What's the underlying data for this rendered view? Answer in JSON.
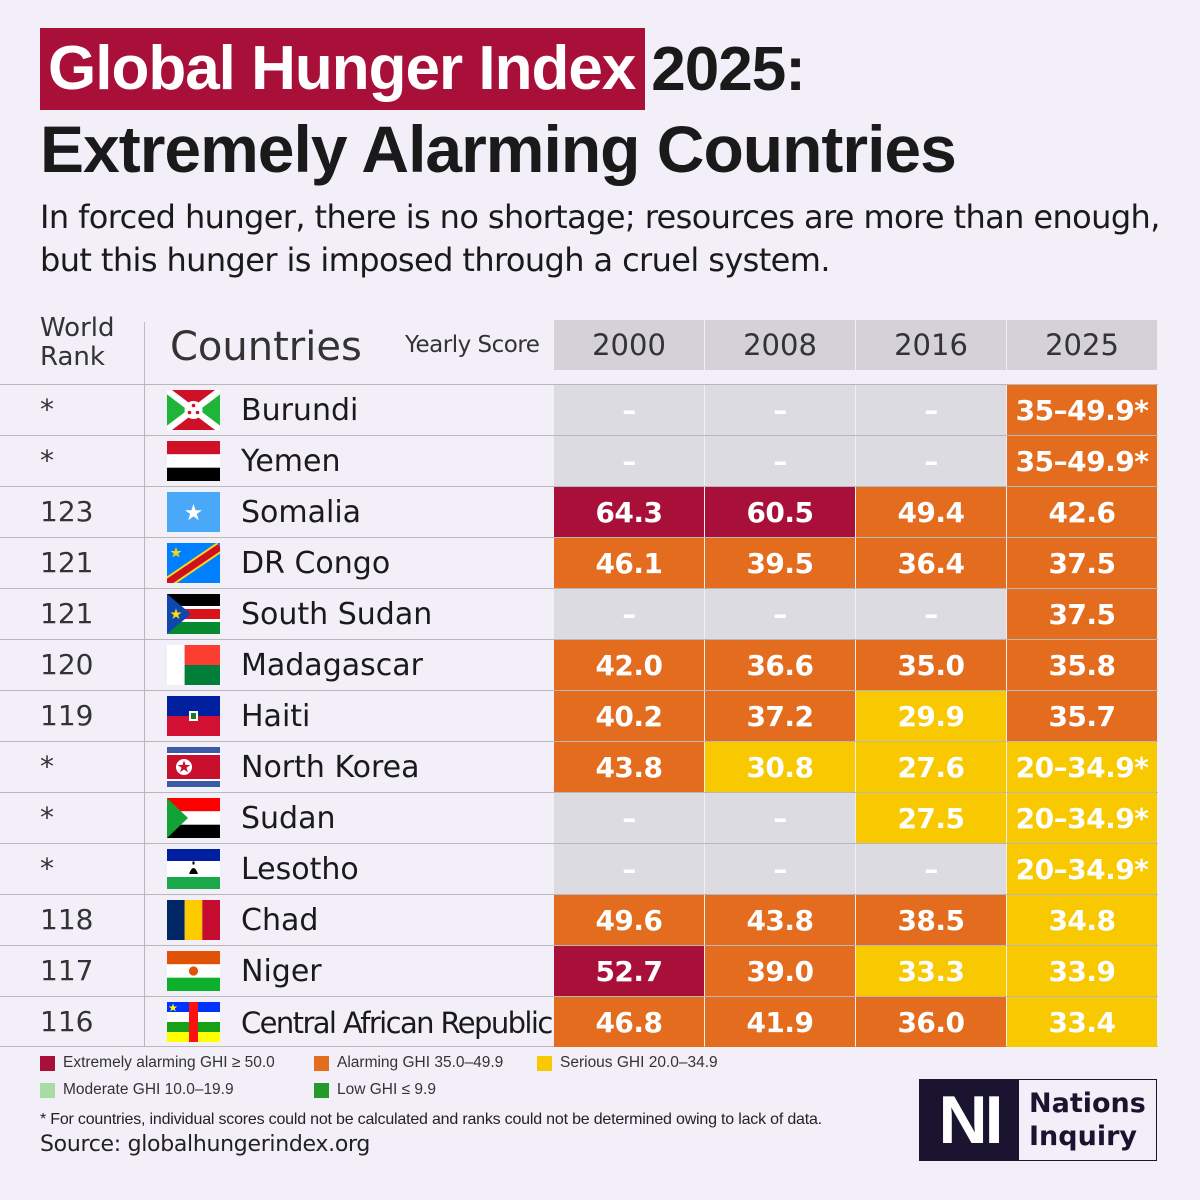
{
  "title": {
    "highlight": "Global Hunger Index",
    "year_suffix": "2025:",
    "line2": "Extremely Alarming Countries"
  },
  "subtitle": "In forced hunger, there is no shortage; resources are more than enough, but this hunger is imposed through a cruel system.",
  "header": {
    "rank_line1": "World",
    "rank_line2": "Rank",
    "countries": "Countries",
    "yearly_score": "Yearly Score",
    "years": [
      "2000",
      "2008",
      "2016",
      "2025"
    ]
  },
  "colors": {
    "extremely_alarming": "#a8103a",
    "alarming": "#e46c1e",
    "serious": "#f8c800",
    "moderate": "#a8dca4",
    "low": "#239a2a",
    "no_data": "#dddbe2",
    "header_bg": "#d4d2d8",
    "background": "#f2eff8"
  },
  "chart_data": {
    "type": "table",
    "title": "Global Hunger Index 2025: Extremely Alarming Countries",
    "columns": [
      "World Rank",
      "Countries",
      "2000",
      "2008",
      "2016",
      "2025"
    ],
    "rows": [
      {
        "rank": "*",
        "country": "Burundi",
        "flag": "burundi",
        "scores": [
          "–",
          "–",
          "–",
          "35–49.9*"
        ],
        "levels": [
          "na",
          "na",
          "na",
          "alarming"
        ]
      },
      {
        "rank": "*",
        "country": "Yemen",
        "flag": "yemen",
        "scores": [
          "–",
          "–",
          "–",
          "35–49.9*"
        ],
        "levels": [
          "na",
          "na",
          "na",
          "alarming"
        ]
      },
      {
        "rank": "123",
        "country": "Somalia",
        "flag": "somalia",
        "scores": [
          "64.3",
          "60.5",
          "49.4",
          "42.6"
        ],
        "levels": [
          "extremely_alarming",
          "extremely_alarming",
          "alarming",
          "alarming"
        ]
      },
      {
        "rank": "121",
        "country": "DR Congo",
        "flag": "drcongo",
        "scores": [
          "46.1",
          "39.5",
          "36.4",
          "37.5"
        ],
        "levels": [
          "alarming",
          "alarming",
          "alarming",
          "alarming"
        ]
      },
      {
        "rank": "121",
        "country": "South Sudan",
        "flag": "southsudan",
        "scores": [
          "–",
          "–",
          "–",
          "37.5"
        ],
        "levels": [
          "na",
          "na",
          "na",
          "alarming"
        ]
      },
      {
        "rank": "120",
        "country": "Madagascar",
        "flag": "madagascar",
        "scores": [
          "42.0",
          "36.6",
          "35.0",
          "35.8"
        ],
        "levels": [
          "alarming",
          "alarming",
          "alarming",
          "alarming"
        ]
      },
      {
        "rank": "119",
        "country": "Haiti",
        "flag": "haiti",
        "scores": [
          "40.2",
          "37.2",
          "29.9",
          "35.7"
        ],
        "levels": [
          "alarming",
          "alarming",
          "serious",
          "alarming"
        ]
      },
      {
        "rank": "*",
        "country": "North Korea",
        "flag": "northkorea",
        "scores": [
          "43.8",
          "30.8",
          "27.6",
          "20–34.9*"
        ],
        "levels": [
          "alarming",
          "serious",
          "serious",
          "serious"
        ]
      },
      {
        "rank": "*",
        "country": "Sudan",
        "flag": "sudan",
        "scores": [
          "–",
          "–",
          "27.5",
          "20–34.9*"
        ],
        "levels": [
          "na",
          "na",
          "serious",
          "serious"
        ]
      },
      {
        "rank": "*",
        "country": "Lesotho",
        "flag": "lesotho",
        "scores": [
          "–",
          "–",
          "–",
          "20–34.9*"
        ],
        "levels": [
          "na",
          "na",
          "na",
          "serious"
        ]
      },
      {
        "rank": "118",
        "country": "Chad",
        "flag": "chad",
        "scores": [
          "49.6",
          "43.8",
          "38.5",
          "34.8"
        ],
        "levels": [
          "alarming",
          "alarming",
          "alarming",
          "serious"
        ]
      },
      {
        "rank": "117",
        "country": "Niger",
        "flag": "niger",
        "scores": [
          "52.7",
          "39.0",
          "33.3",
          "33.9"
        ],
        "levels": [
          "extremely_alarming",
          "alarming",
          "serious",
          "serious"
        ]
      },
      {
        "rank": "116",
        "country": "Central African Republic",
        "flag": "car",
        "scores": [
          "46.8",
          "41.9",
          "36.0",
          "33.4"
        ],
        "levels": [
          "alarming",
          "alarming",
          "alarming",
          "serious"
        ]
      }
    ],
    "legend": [
      {
        "label": "Extremely alarming GHI ≥ 50.0",
        "level": "extremely_alarming"
      },
      {
        "label": "Alarming GHI 35.0–49.9",
        "level": "alarming"
      },
      {
        "label": "Serious GHI 20.0–34.9",
        "level": "serious"
      },
      {
        "label": "Moderate GHI 10.0–19.9",
        "level": "moderate"
      },
      {
        "label": "Low GHI ≤ 9.9",
        "level": "low"
      }
    ]
  },
  "footnote": "* For countries, individual scores could not be calculated and ranks could not be determined owing to lack of data.",
  "source": "Source: globalhungerindex.org",
  "logo": {
    "mark": "NI",
    "line1": "Nations",
    "line2": "Inquiry"
  }
}
